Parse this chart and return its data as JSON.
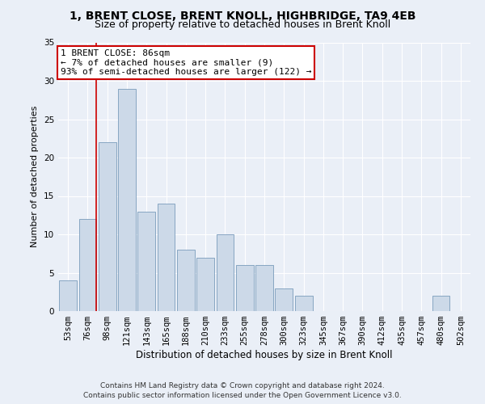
{
  "title": "1, BRENT CLOSE, BRENT KNOLL, HIGHBRIDGE, TA9 4EB",
  "subtitle": "Size of property relative to detached houses in Brent Knoll",
  "xlabel": "Distribution of detached houses by size in Brent Knoll",
  "ylabel": "Number of detached properties",
  "bar_color": "#ccd9e8",
  "bar_edge_color": "#7a9cbb",
  "categories": [
    "53sqm",
    "76sqm",
    "98sqm",
    "121sqm",
    "143sqm",
    "165sqm",
    "188sqm",
    "210sqm",
    "233sqm",
    "255sqm",
    "278sqm",
    "300sqm",
    "323sqm",
    "345sqm",
    "367sqm",
    "390sqm",
    "412sqm",
    "435sqm",
    "457sqm",
    "480sqm",
    "502sqm"
  ],
  "values": [
    4,
    12,
    22,
    29,
    13,
    14,
    8,
    7,
    10,
    6,
    6,
    3,
    2,
    0,
    0,
    0,
    0,
    0,
    0,
    2,
    0
  ],
  "ylim": [
    0,
    35
  ],
  "yticks": [
    0,
    5,
    10,
    15,
    20,
    25,
    30,
    35
  ],
  "annotation_title": "1 BRENT CLOSE: 86sqm",
  "annotation_line1": "← 7% of detached houses are smaller (9)",
  "annotation_line2": "93% of semi-detached houses are larger (122) →",
  "annotation_box_color": "#ffffff",
  "annotation_border_color": "#cc0000",
  "vline_color": "#cc0000",
  "footer_line1": "Contains HM Land Registry data © Crown copyright and database right 2024.",
  "footer_line2": "Contains public sector information licensed under the Open Government Licence v3.0.",
  "bg_color": "#eaeff7",
  "plot_bg_color": "#eaeff7",
  "grid_color": "#ffffff",
  "title_fontsize": 10,
  "subtitle_fontsize": 9,
  "xlabel_fontsize": 8.5,
  "ylabel_fontsize": 8,
  "tick_fontsize": 7.5,
  "footer_fontsize": 6.5,
  "annotation_fontsize": 8
}
